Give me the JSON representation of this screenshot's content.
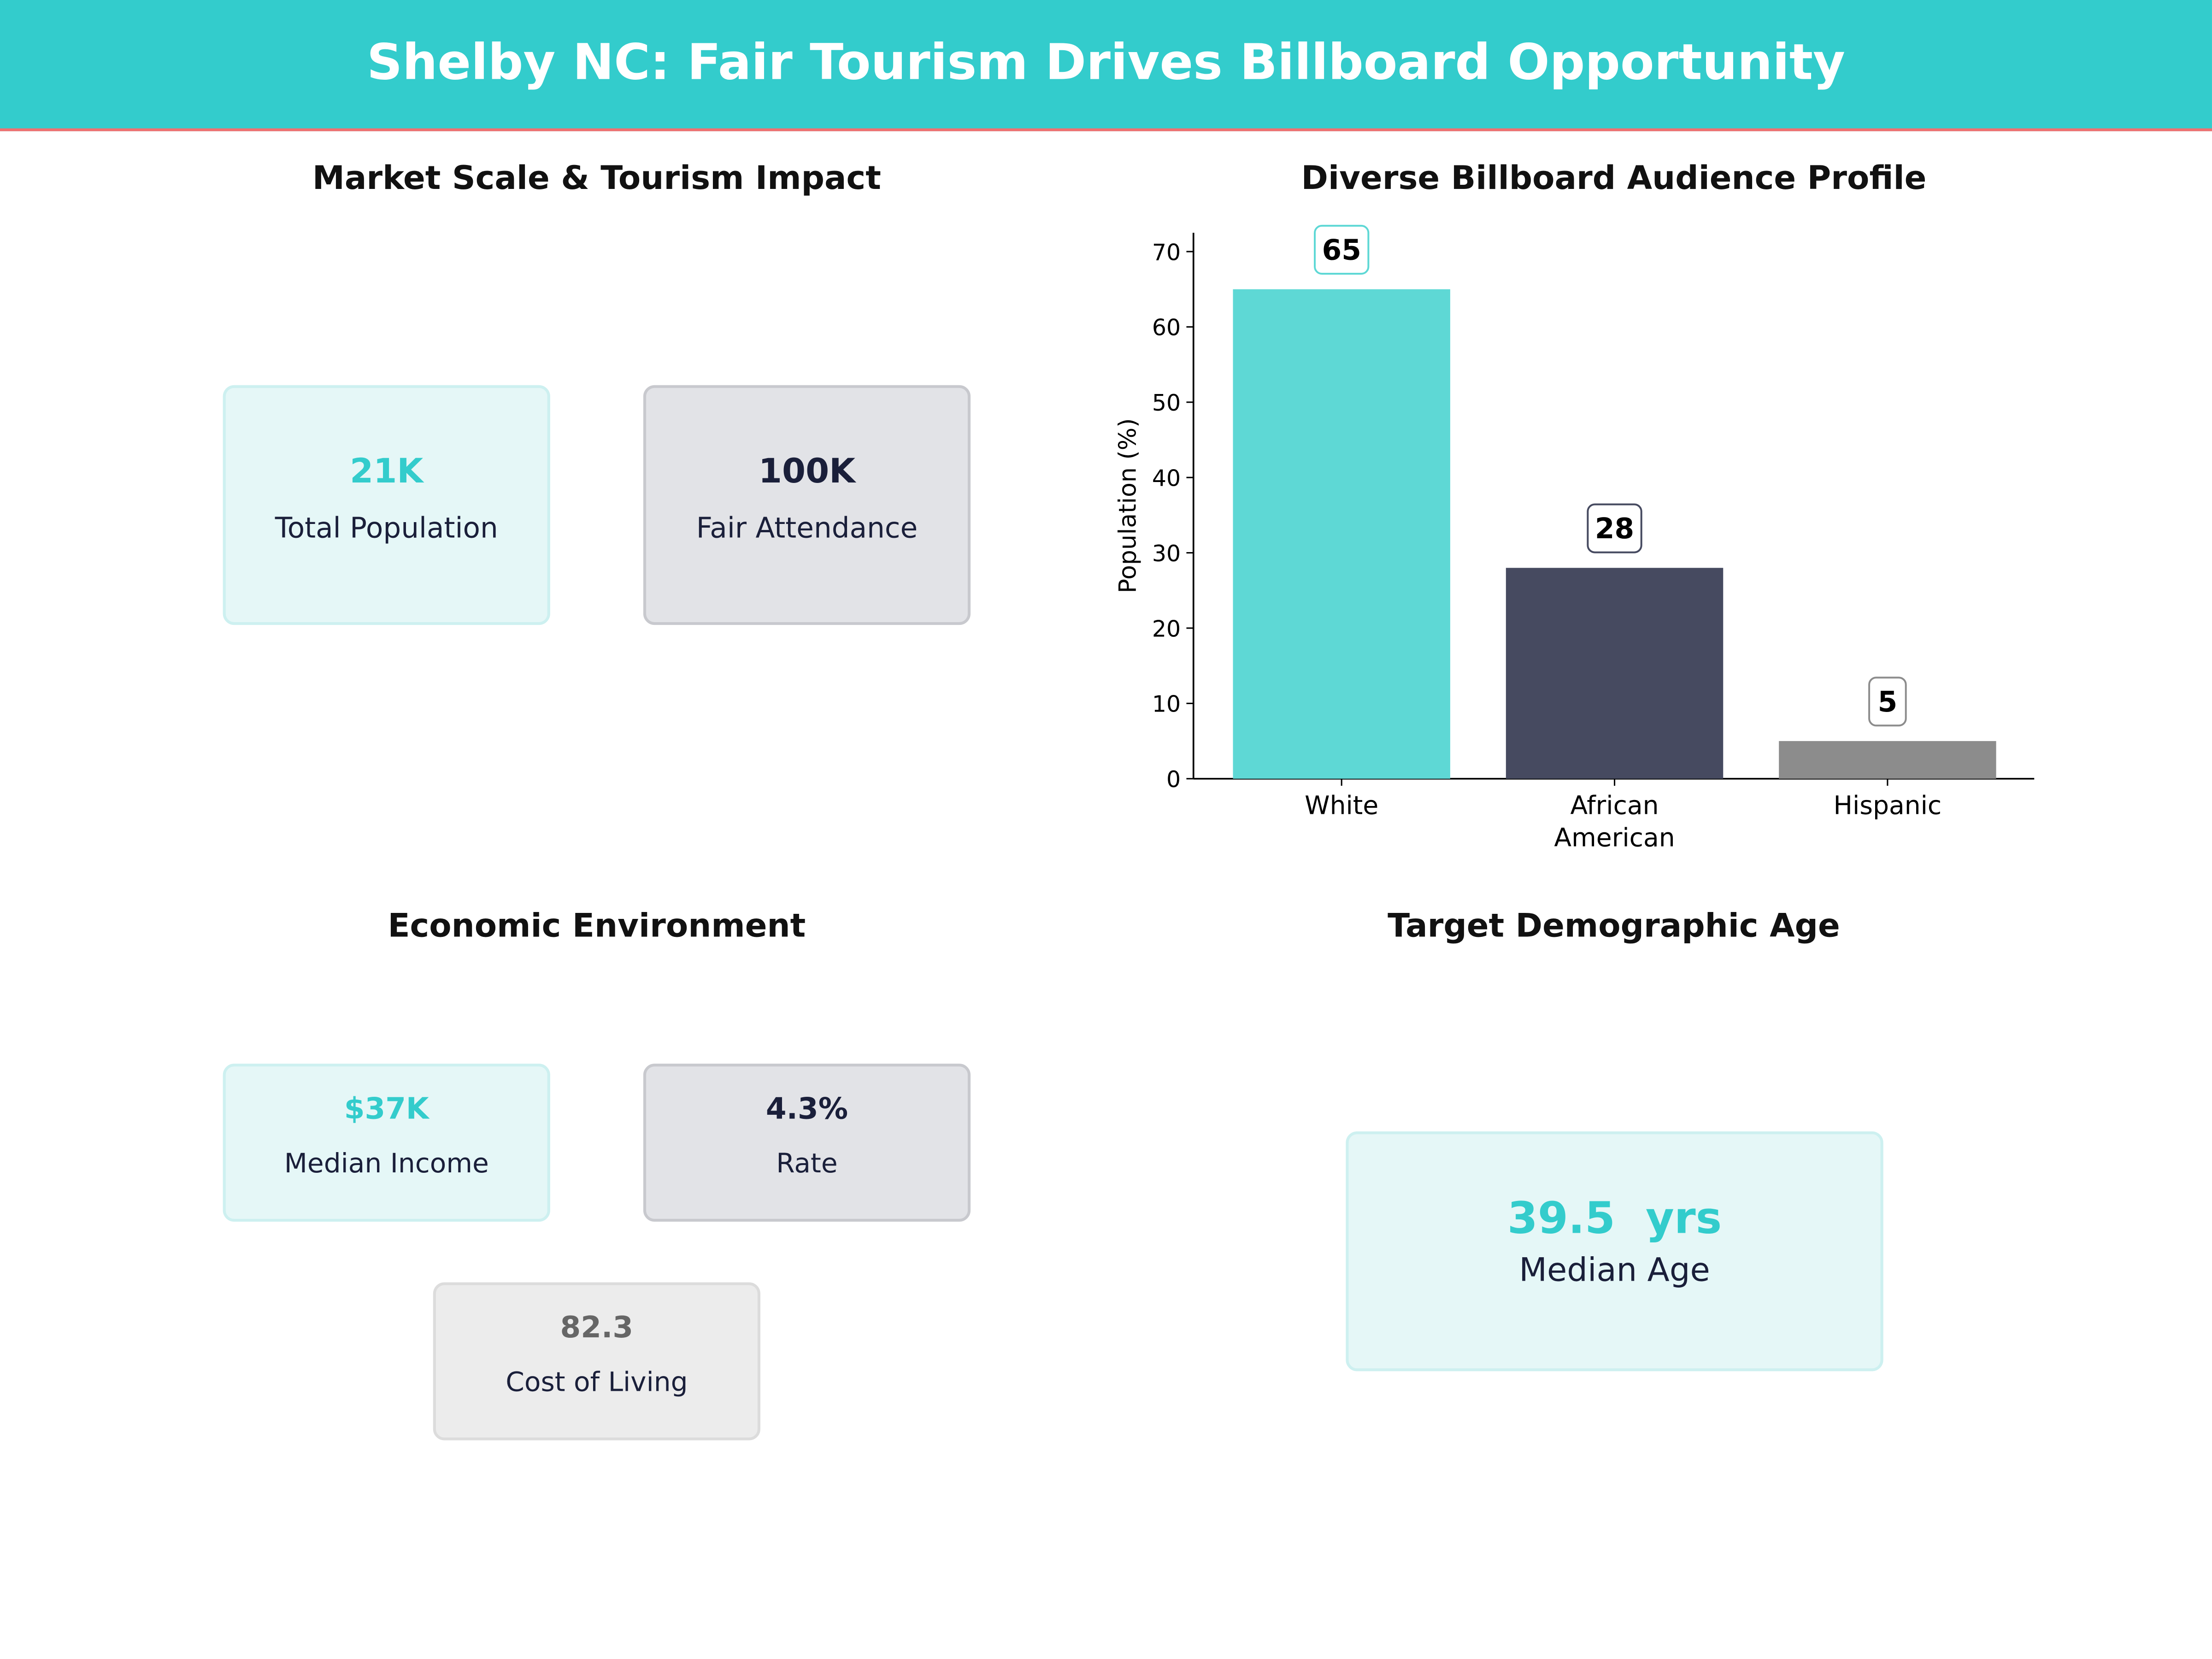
{
  "header": {
    "title": "Shelby NC: Fair Tourism Drives Billboard Opportunity"
  },
  "market": {
    "title": "Market Scale & Tourism Impact",
    "cards": [
      {
        "value": "21K",
        "label": "Total Population"
      },
      {
        "value": "100K",
        "label": "Fair Attendance"
      }
    ]
  },
  "economic": {
    "title": "Economic Environment",
    "cards": [
      {
        "value": "$37K",
        "label": "Median Income"
      },
      {
        "value": "4.3%",
        "label": "Rate"
      },
      {
        "value": "82.3",
        "label": "Cost of Living"
      }
    ]
  },
  "age": {
    "title": "Target Demographic Age",
    "value": "39.5  yrs",
    "label": "Median Age"
  },
  "colors": {
    "teal": "#33cccc",
    "navy": "#1a1f3a",
    "grey": "#666666",
    "bar_teal": "#5ed8d5",
    "bar_navy": "#464a60",
    "bar_grey": "#8c8c8c"
  },
  "chart_data": {
    "type": "bar",
    "title": "Diverse Billboard Audience Profile",
    "ylabel": "Population (%)",
    "xlabel": "",
    "categories": [
      "White",
      "African\nAmerican",
      "Hispanic"
    ],
    "values": [
      65,
      28,
      5
    ],
    "data_labels": [
      "65",
      "28",
      "5"
    ],
    "colors": [
      "#5ed8d5",
      "#464a60",
      "#8c8c8c"
    ],
    "ylim": [
      0,
      72.5
    ],
    "yticks": [
      0,
      10,
      20,
      30,
      40,
      50,
      60,
      70
    ],
    "grid": false
  }
}
